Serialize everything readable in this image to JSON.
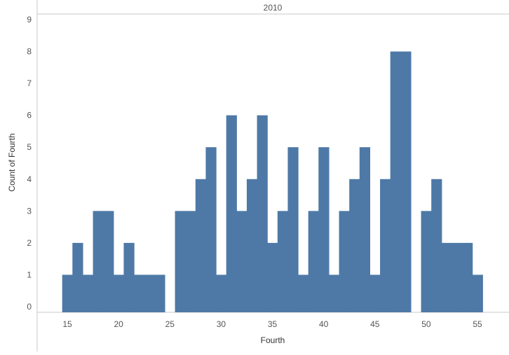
{
  "chart_data": {
    "type": "bar",
    "header": "2010",
    "xlabel": "Fourth",
    "ylabel": "Count of Fourth",
    "color": "#4e79a7",
    "bin_width": 1,
    "xlim": [
      12.5,
      57.5
    ],
    "ylim": [
      -0.2,
      9.2
    ],
    "x_ticks": [
      15,
      20,
      25,
      30,
      35,
      40,
      45,
      50,
      55
    ],
    "y_ticks": [
      0,
      1,
      2,
      3,
      4,
      5,
      6,
      7,
      8,
      9
    ],
    "bins": [
      {
        "x": 14.5,
        "count": 1
      },
      {
        "x": 15.5,
        "count": 2
      },
      {
        "x": 16.5,
        "count": 1
      },
      {
        "x": 17.5,
        "count": 3
      },
      {
        "x": 18.5,
        "count": 3
      },
      {
        "x": 19.5,
        "count": 1
      },
      {
        "x": 20.5,
        "count": 2
      },
      {
        "x": 21.5,
        "count": 1
      },
      {
        "x": 22.5,
        "count": 1
      },
      {
        "x": 23.5,
        "count": 1
      },
      {
        "x": 25.5,
        "count": 3
      },
      {
        "x": 26.5,
        "count": 3
      },
      {
        "x": 27.5,
        "count": 4
      },
      {
        "x": 28.5,
        "count": 5
      },
      {
        "x": 29.5,
        "count": 1
      },
      {
        "x": 30.5,
        "count": 6
      },
      {
        "x": 31.5,
        "count": 3
      },
      {
        "x": 32.5,
        "count": 4
      },
      {
        "x": 33.5,
        "count": 6
      },
      {
        "x": 34.5,
        "count": 2
      },
      {
        "x": 35.5,
        "count": 3
      },
      {
        "x": 36.5,
        "count": 5
      },
      {
        "x": 37.5,
        "count": 1
      },
      {
        "x": 38.5,
        "count": 3
      },
      {
        "x": 39.5,
        "count": 5
      },
      {
        "x": 40.5,
        "count": 1
      },
      {
        "x": 41.5,
        "count": 3
      },
      {
        "x": 42.5,
        "count": 4
      },
      {
        "x": 43.5,
        "count": 5
      },
      {
        "x": 44.5,
        "count": 1
      },
      {
        "x": 45.5,
        "count": 4
      },
      {
        "x": 46.5,
        "count": 8
      },
      {
        "x": 47.5,
        "count": 8
      },
      {
        "x": 49.5,
        "count": 3
      },
      {
        "x": 50.5,
        "count": 4
      },
      {
        "x": 51.5,
        "count": 2
      },
      {
        "x": 52.5,
        "count": 2
      },
      {
        "x": 53.5,
        "count": 2
      },
      {
        "x": 54.5,
        "count": 1
      }
    ]
  }
}
